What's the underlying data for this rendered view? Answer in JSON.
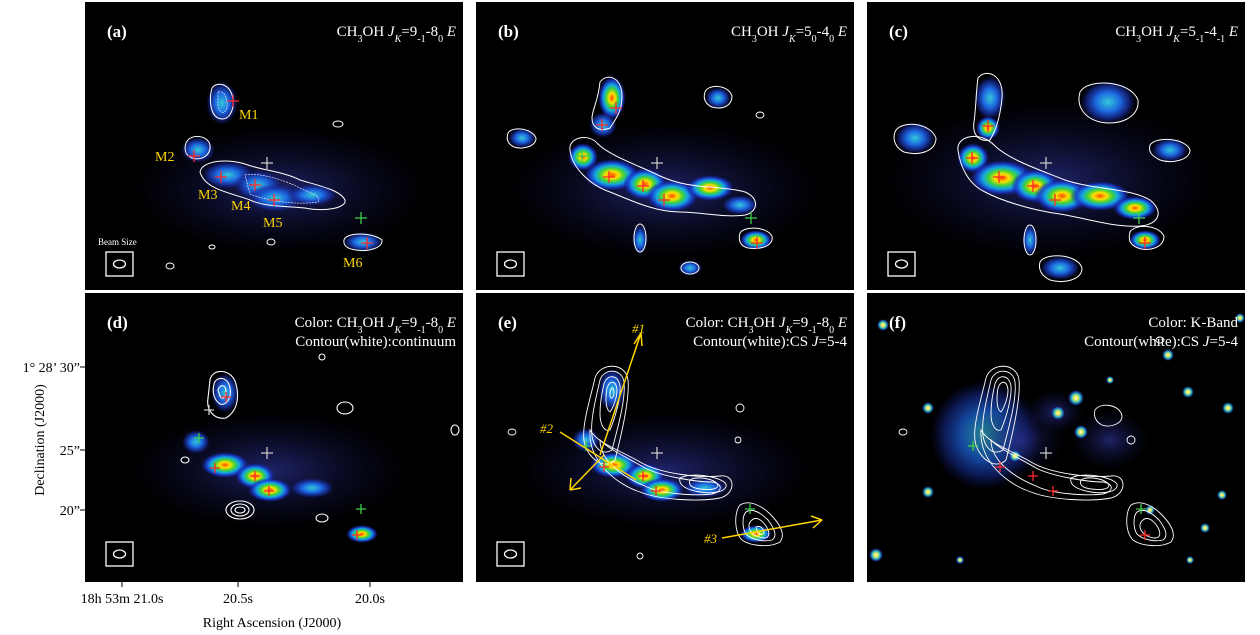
{
  "figure": {
    "y_axis_label": "Declination (J2000)",
    "x_axis_label": "Right Ascension (J2000)",
    "y_ticks": [
      "1° 28’ 30”",
      "25”",
      "20”"
    ],
    "x_ticks": [
      "18h 53m 21.0s",
      "20.5s",
      "20.0s"
    ],
    "beam_label": "Beam Size",
    "panels": [
      {
        "id": "a",
        "label": "(a)",
        "title_lines": [
          [
            {
              "t": "CH"
            },
            {
              "t": "3",
              "s": "sub"
            },
            {
              "t": "OH "
            },
            {
              "t": "J",
              "s": "it"
            },
            {
              "t": "K",
              "s": "sub-it"
            },
            {
              "t": "=9"
            },
            {
              "t": "-1",
              "s": "sub"
            },
            {
              "t": "-8"
            },
            {
              "t": "0",
              "s": "sub"
            },
            {
              "t": " "
            },
            {
              "t": "E",
              "s": "it"
            }
          ]
        ]
      },
      {
        "id": "b",
        "label": "(b)",
        "title_lines": [
          [
            {
              "t": "CH"
            },
            {
              "t": "3",
              "s": "sub"
            },
            {
              "t": "OH "
            },
            {
              "t": "J",
              "s": "it"
            },
            {
              "t": "K",
              "s": "sub-it"
            },
            {
              "t": "=5"
            },
            {
              "t": "0",
              "s": "sub"
            },
            {
              "t": "-4"
            },
            {
              "t": "0",
              "s": "sub"
            },
            {
              "t": " "
            },
            {
              "t": "E",
              "s": "it"
            }
          ]
        ]
      },
      {
        "id": "c",
        "label": "(c)",
        "title_lines": [
          [
            {
              "t": "CH"
            },
            {
              "t": "3",
              "s": "sub"
            },
            {
              "t": "OH "
            },
            {
              "t": "J",
              "s": "it"
            },
            {
              "t": "K",
              "s": "sub-it"
            },
            {
              "t": "=5"
            },
            {
              "t": "-1",
              "s": "sub"
            },
            {
              "t": "-4"
            },
            {
              "t": "-1",
              "s": "sub"
            },
            {
              "t": " "
            },
            {
              "t": "E",
              "s": "it"
            }
          ]
        ]
      },
      {
        "id": "d",
        "label": "(d)",
        "title_lines": [
          [
            {
              "t": "Color: CH"
            },
            {
              "t": "3",
              "s": "sub"
            },
            {
              "t": "OH "
            },
            {
              "t": "J",
              "s": "it"
            },
            {
              "t": "K",
              "s": "sub-it"
            },
            {
              "t": "=9"
            },
            {
              "t": "-1",
              "s": "sub"
            },
            {
              "t": "-8"
            },
            {
              "t": "0",
              "s": "sub"
            },
            {
              "t": " "
            },
            {
              "t": "E",
              "s": "it"
            }
          ],
          [
            {
              "t": "Contour(white):continuum"
            }
          ]
        ]
      },
      {
        "id": "e",
        "label": "(e)",
        "title_lines": [
          [
            {
              "t": "Color: CH"
            },
            {
              "t": "3",
              "s": "sub"
            },
            {
              "t": "OH "
            },
            {
              "t": "J",
              "s": "it"
            },
            {
              "t": "K",
              "s": "sub-it"
            },
            {
              "t": "=9"
            },
            {
              "t": "-1",
              "s": "sub"
            },
            {
              "t": "-8"
            },
            {
              "t": "0",
              "s": "sub"
            },
            {
              "t": " "
            },
            {
              "t": "E",
              "s": "it"
            }
          ],
          [
            {
              "t": "Contour(white):CS "
            },
            {
              "t": "J",
              "s": "it"
            },
            {
              "t": "=5-4"
            }
          ]
        ]
      },
      {
        "id": "f",
        "label": "(f)",
        "title_lines": [
          [
            {
              "t": "Color: K-Band"
            }
          ],
          [
            {
              "t": "Contour(white):CS "
            },
            {
              "t": "J",
              "s": "it"
            },
            {
              "t": "=5-4"
            }
          ]
        ]
      }
    ],
    "cores": [
      "M1",
      "M2",
      "M3",
      "M4",
      "M5",
      "M6"
    ],
    "arrows": [
      "#1",
      "#2",
      "#3"
    ],
    "colors": {
      "background": "#000000",
      "label_yellow": "#ffd400",
      "red_cross": "#ff2a2a",
      "green_cross": "#3ecf4a",
      "grey_cross": "#c8c8c8",
      "contour": "#ffffff"
    }
  }
}
